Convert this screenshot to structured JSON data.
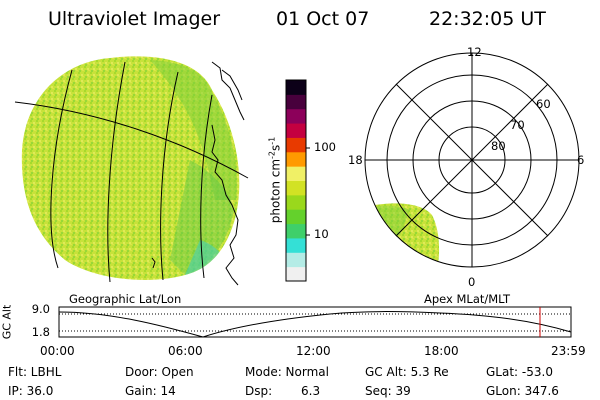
{
  "header": {
    "instrument": "Ultraviolet Imager",
    "date": "01 Oct 07",
    "time": "22:32:05 UT"
  },
  "colorbar": {
    "unit_label": "photon cm",
    "unit_sup1": "-2",
    "unit_mid": "s",
    "unit_sup2": "-1",
    "ticks": [
      "100",
      "10"
    ],
    "colors": [
      "#f0f0f0",
      "#b4ece6",
      "#34e0d6",
      "#3fcf6a",
      "#64d12c",
      "#9ad81c",
      "#d2e224",
      "#f0f066",
      "#ff9a00",
      "#e83a00",
      "#c40040",
      "#8c005a",
      "#48003c",
      "#0c0018"
    ]
  },
  "geo_panel": {
    "label": "Geographic Lat/Lon"
  },
  "polar_panel": {
    "label": "Apex MLat/MLT",
    "mlt_labels": {
      "top": "12",
      "left": "18",
      "right": "6",
      "bottom": "0"
    },
    "lat_labels": [
      "60",
      "70",
      "80"
    ]
  },
  "orbit_plot": {
    "ylabel": "GC Alt",
    "y_ticks": [
      "9.0",
      "1.8"
    ],
    "x_ticks": [
      "00:00",
      "06:00",
      "12:00",
      "18:00",
      "23:59"
    ],
    "current_marker_time": "22:32",
    "marker_color": "#cc0000"
  },
  "footer": {
    "flt": "Flt: LBHL",
    "door": "Door: Open",
    "mode": "Mode: Normal",
    "gcalt": "GC Alt: 5.3 Re",
    "glat": "GLat: -53.0",
    "ip": "IP: 36.0",
    "gain": "Gain: 14",
    "dsp_label": "Dsp:",
    "dsp_val": "6.3",
    "seq": "Seq: 39",
    "glon": "GLon: 347.6"
  }
}
